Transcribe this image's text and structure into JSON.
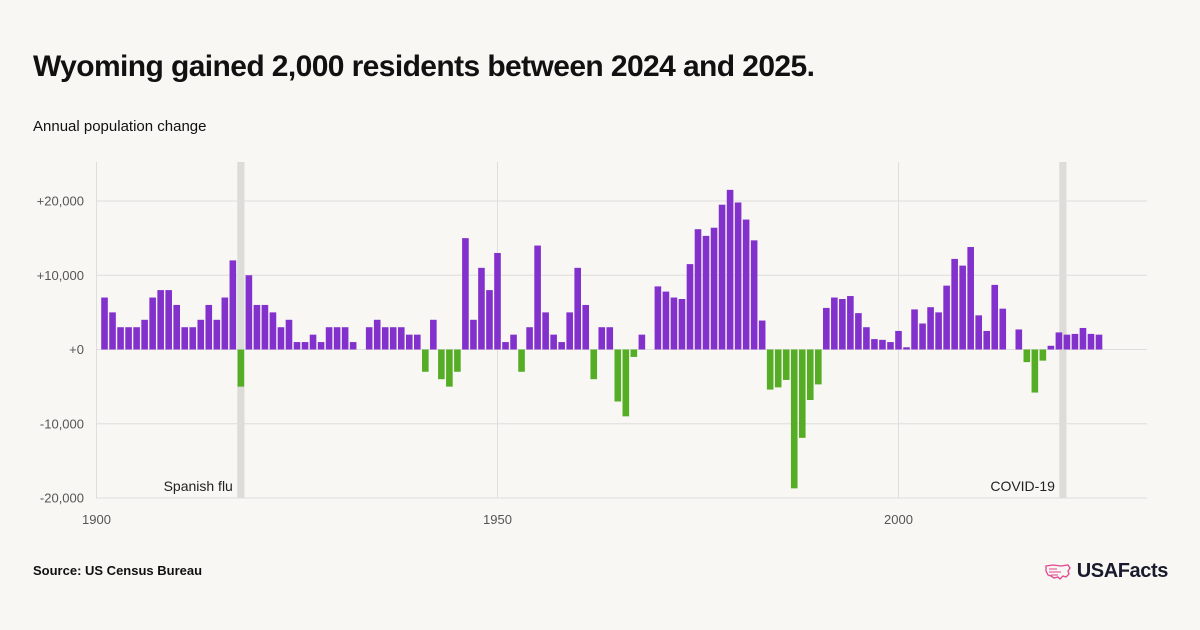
{
  "title": "Wyoming gained 2,000 residents between 2024 and 2025.",
  "subtitle": "Annual population change",
  "source": "Source: US Census Bureau",
  "logo": {
    "text": "USAFacts",
    "icon": "us-map-icon"
  },
  "colors": {
    "positive": "#8331cc",
    "negative": "#55ad25",
    "highlight": "#dcdcd8",
    "grid": "#dedede"
  },
  "chart_data": {
    "type": "bar",
    "title": "Wyoming gained 2,000 residents between 2024 and 2025.",
    "ylabel": "Annual population change",
    "xlabel": "",
    "xlim": [
      1900,
      2031
    ],
    "ylim": [
      -20000,
      24000
    ],
    "x_ticks": [
      {
        "value": 1900,
        "label": "1900"
      },
      {
        "value": 1950,
        "label": "1950"
      },
      {
        "value": 2000,
        "label": "2000"
      }
    ],
    "y_ticks": [
      {
        "value": 20000,
        "label": "+20,000"
      },
      {
        "value": 10000,
        "label": "+10,000"
      },
      {
        "value": 0,
        "label": "+0"
      },
      {
        "value": -10000,
        "label": "-10,000"
      },
      {
        "value": -20000,
        "label": "-20,000"
      }
    ],
    "grid": true,
    "annotations": [
      {
        "x": 1918,
        "label": "Spanish flu",
        "side": "left"
      },
      {
        "x": 2020.5,
        "label": "COVID-19",
        "side": "left"
      }
    ],
    "years": [
      1901,
      1902,
      1903,
      1904,
      1905,
      1906,
      1907,
      1908,
      1909,
      1910,
      1911,
      1912,
      1913,
      1914,
      1915,
      1916,
      1917,
      1918,
      1919,
      1920,
      1921,
      1922,
      1923,
      1924,
      1925,
      1926,
      1927,
      1928,
      1929,
      1930,
      1931,
      1932,
      1933,
      1934,
      1935,
      1936,
      1937,
      1938,
      1939,
      1940,
      1941,
      1942,
      1943,
      1944,
      1945,
      1946,
      1947,
      1948,
      1949,
      1950,
      1951,
      1952,
      1953,
      1954,
      1955,
      1956,
      1957,
      1958,
      1959,
      1960,
      1961,
      1962,
      1963,
      1964,
      1965,
      1966,
      1967,
      1968,
      1969,
      1970,
      1971,
      1972,
      1973,
      1974,
      1975,
      1976,
      1977,
      1978,
      1979,
      1980,
      1981,
      1982,
      1983,
      1984,
      1985,
      1986,
      1987,
      1988,
      1989,
      1990,
      1991,
      1992,
      1993,
      1994,
      1995,
      1996,
      1997,
      1998,
      1999,
      2000,
      2001,
      2002,
      2003,
      2004,
      2005,
      2006,
      2007,
      2008,
      2009,
      2010,
      2011,
      2012,
      2013,
      2014,
      2015,
      2016,
      2017,
      2018,
      2019,
      2020,
      2021,
      2022,
      2023,
      2024,
      2025
    ],
    "values": [
      7000,
      5000,
      3000,
      3000,
      3000,
      4000,
      7000,
      8000,
      8000,
      6000,
      3000,
      3000,
      4000,
      6000,
      4000,
      7000,
      12000,
      -5000,
      10000,
      6000,
      6000,
      5000,
      3000,
      4000,
      1000,
      1000,
      2000,
      1000,
      3000,
      3000,
      3000,
      1000,
      0,
      3000,
      4000,
      3000,
      3000,
      3000,
      2000,
      2000,
      -3000,
      4000,
      -4000,
      -5000,
      -3000,
      15000,
      4000,
      11000,
      8000,
      13000,
      1000,
      2000,
      -3000,
      3000,
      14000,
      5000,
      2000,
      1000,
      5000,
      11000,
      6000,
      -4000,
      3000,
      3000,
      -7000,
      -9000,
      -1000,
      2000,
      0,
      8500,
      7800,
      7000,
      6800,
      11500,
      16200,
      15300,
      16400,
      19500,
      21500,
      19800,
      17500,
      14700,
      3900,
      -5400,
      -5100,
      -4100,
      -18700,
      -11900,
      -6800,
      -4700,
      5600,
      7000,
      6800,
      7200,
      4900,
      3000,
      1400,
      1300,
      1000,
      2500,
      300,
      5400,
      3500,
      5700,
      5000,
      8600,
      12200,
      11300,
      13800,
      4600,
      2500,
      8700,
      5500,
      0,
      2700,
      -1700,
      -5800,
      -1500,
      500,
      2300,
      2000,
      2100,
      2900,
      2100,
      2000
    ]
  }
}
